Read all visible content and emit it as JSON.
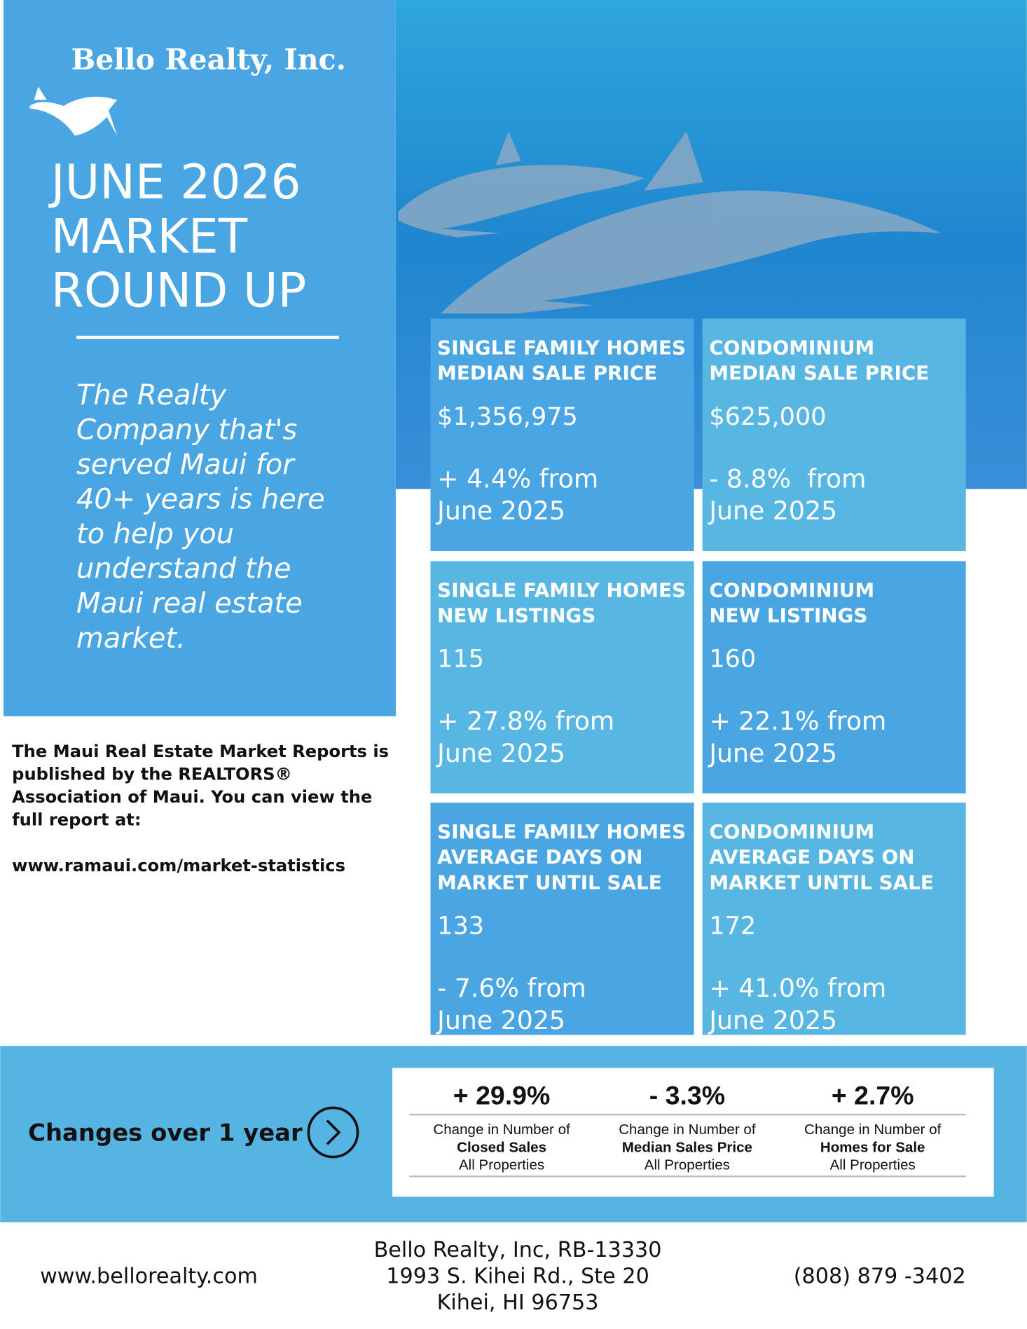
{
  "header": {
    "logo": "Bello Realty, Inc.",
    "title": [
      "JUNE 2026",
      "MARKET",
      "ROUND UP"
    ],
    "tagline": [
      "The Realty",
      "Company that's",
      "served Maui for",
      "40+ years is here",
      "to help you",
      "understand the",
      "Maui real estate",
      "market."
    ]
  },
  "cards": [
    {
      "heading": [
        "SINGLE FAMILY HOMES",
        "MEDIAN SALE PRICE"
      ],
      "value": "$1,356,975",
      "change": [
        "+ 4.4% from",
        "June 2025"
      ]
    },
    {
      "heading": [
        "CONDOMINIUM",
        "MEDIAN SALE PRICE"
      ],
      "value": "$625,000",
      "change": [
        "- 8.8%  from",
        "June 2025"
      ]
    },
    {
      "heading": [
        "SINGLE FAMILY HOMES",
        "NEW LISTINGS"
      ],
      "value": "115",
      "change": [
        "+ 27.8% from",
        "June 2025"
      ]
    },
    {
      "heading": [
        "CONDOMINIUM",
        "NEW LISTINGS"
      ],
      "value": "160",
      "change": [
        "+ 22.1% from",
        "June 2025"
      ]
    },
    {
      "heading": [
        "SINGLE FAMILY HOMES",
        "AVERAGE DAYS ON",
        "MARKET UNTIL SALE"
      ],
      "value": "133",
      "change": [
        "- 7.6% from",
        "June 2025"
      ]
    },
    {
      "heading": [
        "CONDOMINIUM",
        "AVERAGE DAYS ON",
        "MARKET UNTIL SALE"
      ],
      "value": "172",
      "change": [
        "+ 41.0% from",
        "June 2025"
      ]
    }
  ],
  "note": {
    "text": [
      "The Maui Real Estate Market Reports is",
      "published by the REALTORS®",
      "Association of Maui. You can view the",
      "full report at:"
    ],
    "url": "www.ramaui.com/market-statistics"
  },
  "changes": {
    "label": "Changes over 1 year",
    "stats": [
      {
        "value": "+ 29.9%",
        "lines": [
          "Change in Number of",
          "Closed Sales",
          "All Properties"
        ]
      },
      {
        "value": "- 3.3%",
        "lines": [
          "Change in Number of",
          "Median Sales Price",
          "All Properties"
        ]
      },
      {
        "value": "+ 2.7%",
        "lines": [
          "Change in Number of",
          "Homes for Sale",
          "All Properties"
        ]
      }
    ]
  },
  "footer": {
    "website": "www.bellorealty.com",
    "address": [
      "Bello Realty, Inc, RB-13330",
      "1993 S. Kihei Rd., Ste 20",
      "Kihei, HI 96753"
    ],
    "phone": "(808) 879 -3402"
  }
}
